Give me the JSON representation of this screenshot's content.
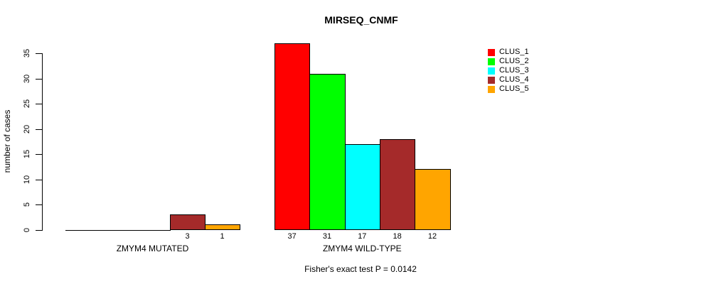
{
  "title": "MIRSEQ_CNMF",
  "footer": "Fisher's exact test P = 0.0142",
  "chart_data": {
    "type": "bar",
    "title": "MIRSEQ_CNMF",
    "xlabel": "",
    "ylabel": "number of cases",
    "ylim": [
      0,
      35
    ],
    "yticks": [
      0,
      5,
      10,
      15,
      20,
      25,
      30,
      35
    ],
    "grid": false,
    "legend_position": "right",
    "series_labels": [
      "CLUS_1",
      "CLUS_2",
      "CLUS_3",
      "CLUS_4",
      "CLUS_5"
    ],
    "colors": [
      "#ff0000",
      "#00ff00",
      "#00ffff",
      "#a52a2a",
      "#ffa500"
    ],
    "groups": [
      {
        "label": "ZMYM4 MUTATED",
        "values": [
          0,
          0,
          0,
          3,
          1
        ]
      },
      {
        "label": "ZMYM4 WILD-TYPE",
        "values": [
          37,
          31,
          17,
          18,
          12
        ]
      }
    ],
    "bar_value_labels": {
      "shown_for": "nonzero bars",
      "mutated": [
        3,
        1
      ],
      "wild_type": [
        37,
        31,
        17,
        18,
        12
      ]
    },
    "annotation": "Fisher's exact test P = 0.0142"
  }
}
